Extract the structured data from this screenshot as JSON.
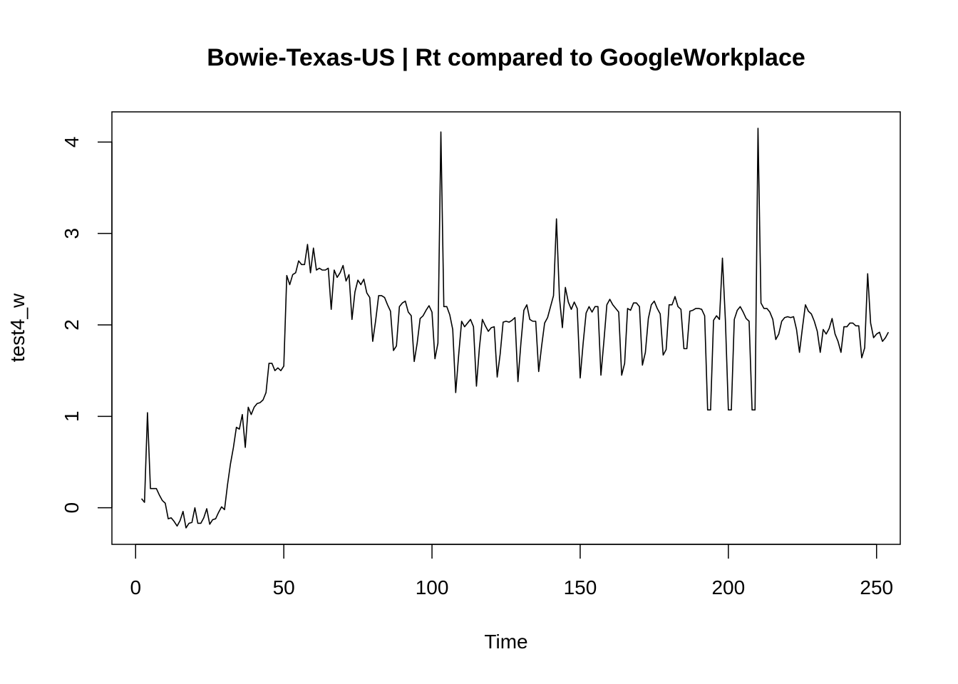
{
  "chart_data": {
    "type": "line",
    "title": "Bowie-Texas-US | Rt compared to GoogleWorkplace",
    "xlabel": "Time",
    "ylabel": "test4_w",
    "xlim": [
      -8,
      258
    ],
    "ylim": [
      -0.4,
      4.33
    ],
    "x_ticks": [
      0,
      50,
      100,
      150,
      200,
      250
    ],
    "y_ticks": [
      0,
      1,
      2,
      3,
      4
    ],
    "grid": false,
    "line_color": "#000000",
    "x_start": 2,
    "values": [
      0.1,
      0.06,
      1.04,
      0.21,
      0.21,
      0.21,
      0.14,
      0.08,
      0.05,
      -0.12,
      -0.11,
      -0.15,
      -0.2,
      -0.14,
      -0.04,
      -0.22,
      -0.17,
      -0.16,
      0.0,
      -0.17,
      -0.17,
      -0.11,
      -0.01,
      -0.18,
      -0.13,
      -0.12,
      -0.05,
      0.01,
      -0.02,
      0.25,
      0.48,
      0.66,
      0.88,
      0.86,
      1.02,
      0.66,
      1.1,
      1.02,
      1.1,
      1.14,
      1.15,
      1.18,
      1.26,
      1.58,
      1.58,
      1.5,
      1.53,
      1.5,
      1.55,
      2.54,
      2.44,
      2.55,
      2.57,
      2.7,
      2.66,
      2.66,
      2.88,
      2.57,
      2.84,
      2.6,
      2.62,
      2.6,
      2.6,
      2.62,
      2.17,
      2.6,
      2.52,
      2.57,
      2.65,
      2.48,
      2.55,
      2.06,
      2.36,
      2.49,
      2.44,
      2.5,
      2.35,
      2.3,
      1.82,
      2.05,
      2.32,
      2.32,
      2.3,
      2.22,
      2.15,
      1.72,
      1.77,
      2.2,
      2.24,
      2.26,
      2.14,
      2.1,
      1.6,
      1.8,
      2.07,
      2.1,
      2.16,
      2.21,
      2.14,
      1.63,
      1.8,
      4.11,
      2.2,
      2.2,
      2.11,
      1.95,
      1.26,
      1.67,
      2.04,
      1.98,
      2.02,
      2.06,
      1.98,
      1.33,
      1.75,
      2.06,
      1.99,
      1.93,
      1.97,
      1.98,
      1.43,
      1.68,
      2.03,
      2.04,
      2.03,
      2.05,
      2.08,
      1.38,
      1.8,
      2.16,
      2.22,
      2.06,
      2.04,
      2.04,
      1.49,
      1.77,
      2.02,
      2.08,
      2.2,
      2.32,
      3.16,
      2.3,
      1.97,
      2.41,
      2.25,
      2.17,
      2.25,
      2.18,
      1.42,
      1.8,
      2.13,
      2.2,
      2.14,
      2.2,
      2.2,
      1.45,
      1.82,
      2.22,
      2.28,
      2.22,
      2.18,
      2.14,
      1.45,
      1.58,
      2.18,
      2.16,
      2.24,
      2.24,
      2.2,
      1.56,
      1.7,
      2.07,
      2.22,
      2.26,
      2.18,
      2.12,
      1.67,
      1.73,
      2.22,
      2.22,
      2.31,
      2.2,
      2.17,
      1.74,
      1.74,
      2.15,
      2.16,
      2.18,
      2.18,
      2.17,
      2.1,
      1.07,
      1.07,
      2.05,
      2.1,
      2.06,
      2.73,
      2.05,
      1.07,
      1.07,
      2.06,
      2.16,
      2.2,
      2.14,
      2.07,
      2.04,
      1.07,
      1.07,
      4.15,
      2.24,
      2.18,
      2.18,
      2.14,
      2.06,
      1.84,
      1.9,
      2.04,
      2.08,
      2.09,
      2.08,
      2.09,
      1.95,
      1.7,
      1.97,
      2.22,
      2.15,
      2.12,
      2.04,
      1.93,
      1.7,
      1.95,
      1.9,
      1.96,
      2.07,
      1.9,
      1.82,
      1.7,
      1.98,
      1.98,
      2.02,
      2.02,
      1.99,
      1.99,
      1.64,
      1.75,
      2.56,
      2.02,
      1.86,
      1.9,
      1.92,
      1.82,
      1.86,
      1.92
    ]
  }
}
